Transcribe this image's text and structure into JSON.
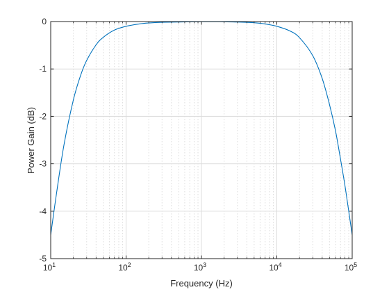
{
  "chart_data": {
    "type": "line",
    "title": "",
    "xlabel": "Frequency (Hz)",
    "ylabel": "Power Gain (dB)",
    "x_scale": "log",
    "xlim": [
      10,
      100000
    ],
    "ylim": [
      -5,
      0
    ],
    "x_ticks": [
      {
        "base": "10",
        "exp": "1",
        "value": 10
      },
      {
        "base": "10",
        "exp": "2",
        "value": 100
      },
      {
        "base": "10",
        "exp": "3",
        "value": 1000
      },
      {
        "base": "10",
        "exp": "4",
        "value": 10000
      },
      {
        "base": "10",
        "exp": "5",
        "value": 100000
      }
    ],
    "y_ticks": [
      "0",
      "-1",
      "-2",
      "-3",
      "-4",
      "-5"
    ],
    "grid": {
      "major": true,
      "minor_x": true
    },
    "colors": {
      "line": "#0072bd",
      "axis": "#262626",
      "grid": "#dcdcdc"
    },
    "series": [
      {
        "x": [
          10,
          12,
          15,
          20,
          25,
          30,
          40,
          50,
          70,
          100,
          150,
          200,
          300,
          500,
          700,
          1000,
          1500,
          2000,
          3000,
          5000,
          7000,
          10000,
          15000,
          20000,
          30000,
          40000,
          50000,
          60000,
          70000,
          80000,
          90000,
          100000
        ],
        "y": [
          -4.5,
          -3.6,
          -2.6,
          -1.65,
          -1.13,
          -0.82,
          -0.49,
          -0.33,
          -0.18,
          -0.1,
          -0.05,
          -0.03,
          -0.015,
          -0.01,
          -0.005,
          -0.003,
          -0.003,
          -0.005,
          -0.01,
          -0.025,
          -0.05,
          -0.1,
          -0.2,
          -0.34,
          -0.72,
          -1.2,
          -1.75,
          -2.3,
          -2.9,
          -3.45,
          -4.0,
          -4.5
        ]
      }
    ]
  }
}
